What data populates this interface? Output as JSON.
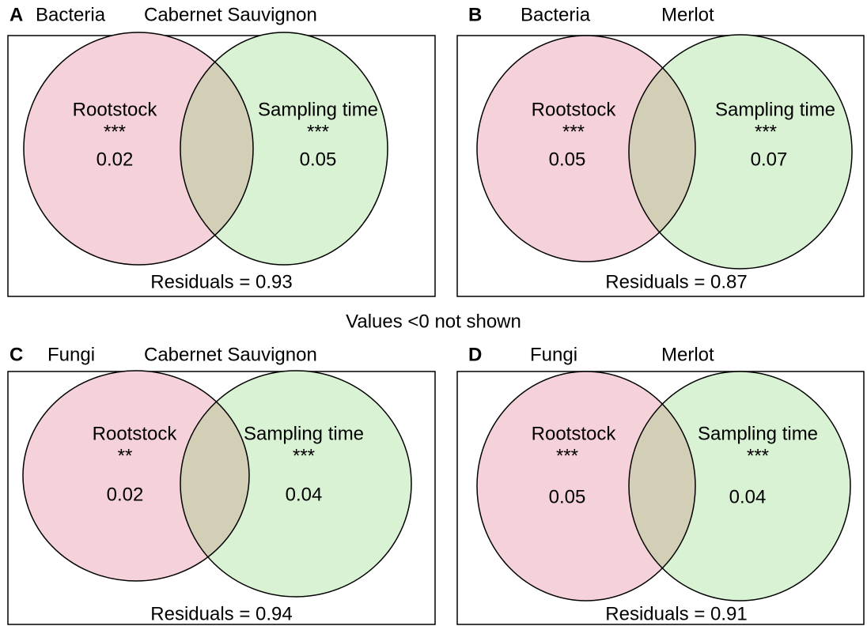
{
  "footnote": "Values <0 not shown",
  "panels": [
    {
      "letter": "A",
      "group": "Bacteria",
      "cultivar": "Cabernet Sauvignon",
      "sets": [
        {
          "label": "Rootstock",
          "signif": "***",
          "value": 0.02
        },
        {
          "label": "Sampling time",
          "signif": "***",
          "value": 0.05
        }
      ],
      "residuals": "Residuals = 0.93"
    },
    {
      "letter": "B",
      "group": "Bacteria",
      "cultivar": "Merlot",
      "sets": [
        {
          "label": "Rootstock",
          "signif": "***",
          "value": 0.05
        },
        {
          "label": "Sampling time",
          "signif": "***",
          "value": 0.07
        }
      ],
      "residuals": "Residuals = 0.87"
    },
    {
      "letter": "C",
      "group": "Fungi",
      "cultivar": "Cabernet Sauvignon",
      "sets": [
        {
          "label": "Rootstock",
          "signif": "**",
          "value": 0.02
        },
        {
          "label": "Sampling time",
          "signif": "***",
          "value": 0.04
        }
      ],
      "residuals": "Residuals = 0.94"
    },
    {
      "letter": "D",
      "group": "Fungi",
      "cultivar": "Merlot",
      "sets": [
        {
          "label": "Rootstock",
          "signif": "***",
          "value": 0.05
        },
        {
          "label": "Sampling time",
          "signif": "***",
          "value": 0.04
        }
      ],
      "residuals": "Residuals = 0.91"
    }
  ]
}
